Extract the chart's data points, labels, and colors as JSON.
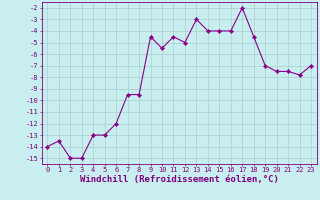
{
  "x": [
    0,
    1,
    2,
    3,
    4,
    5,
    6,
    7,
    8,
    9,
    10,
    11,
    12,
    13,
    14,
    15,
    16,
    17,
    18,
    19,
    20,
    21,
    22,
    23
  ],
  "y": [
    -14,
    -13.5,
    -15,
    -15,
    -13,
    -13,
    -12,
    -9.5,
    -9.5,
    -4.5,
    -5.5,
    -4.5,
    -5,
    -3,
    -4,
    -4,
    -4,
    -2,
    -4.5,
    -7,
    -7.5,
    -7.5,
    -7.8,
    -7
  ],
  "line_color": "#8B008B",
  "marker_color": "#8B008B",
  "bg_color": "#c8eef0",
  "grid_color": "#aacccc",
  "xlabel": "Windchill (Refroidissement éolien,°C)",
  "ylim": [
    -15.5,
    -1.5
  ],
  "xlim": [
    -0.5,
    23.5
  ],
  "yticks": [
    -15,
    -14,
    -13,
    -12,
    -11,
    -10,
    -9,
    -8,
    -7,
    -6,
    -5,
    -4,
    -3,
    -2
  ],
  "xticks": [
    0,
    1,
    2,
    3,
    4,
    5,
    6,
    7,
    8,
    9,
    10,
    11,
    12,
    13,
    14,
    15,
    16,
    17,
    18,
    19,
    20,
    21,
    22,
    23
  ],
  "tick_fontsize": 5.0,
  "xlabel_fontsize": 6.5
}
